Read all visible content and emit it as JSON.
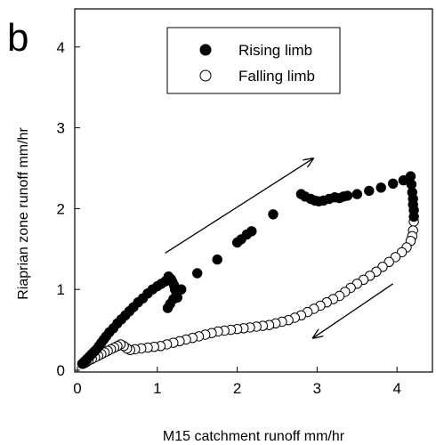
{
  "chart_data": {
    "type": "scatter",
    "panel_label": "b",
    "xlabel": "M15 catchment runoff mm/hr",
    "ylabel": "Riaprian zone runoff mm/hr",
    "xlim": [
      0,
      4.5
    ],
    "ylim": [
      0,
      4.5
    ],
    "xticks": [
      0,
      1,
      2,
      3,
      4
    ],
    "yticks": [
      0,
      1,
      2,
      3,
      4
    ],
    "grid": false,
    "legend_position": "top-center",
    "series": [
      {
        "name": "Rising limb",
        "marker": "filled-circle",
        "color": "#000000",
        "x": [
          0.06,
          0.09,
          0.12,
          0.15,
          0.18,
          0.21,
          0.24,
          0.27,
          0.3,
          0.33,
          0.36,
          0.4,
          0.45,
          0.5,
          0.55,
          0.6,
          0.65,
          0.7,
          0.76,
          0.82,
          0.88,
          0.94,
          1.0,
          1.05,
          1.1,
          1.14,
          1.17,
          1.19,
          1.21,
          1.22,
          1.24,
          1.2,
          1.16,
          1.13,
          1.25,
          1.3,
          1.5,
          1.75,
          2.0,
          2.05,
          2.12,
          2.18,
          2.45,
          2.8,
          2.85,
          2.92,
          2.97,
          3.02,
          3.08,
          3.15,
          3.22,
          3.28,
          3.33,
          3.38,
          3.5,
          3.65,
          3.8,
          3.95,
          4.08,
          4.17,
          4.18,
          4.19,
          4.2,
          4.2,
          4.21,
          4.21
        ],
        "y": [
          0.08,
          0.11,
          0.14,
          0.17,
          0.2,
          0.23,
          0.26,
          0.3,
          0.34,
          0.38,
          0.42,
          0.47,
          0.52,
          0.58,
          0.63,
          0.68,
          0.73,
          0.78,
          0.84,
          0.89,
          0.95,
          1.0,
          1.04,
          1.07,
          1.1,
          1.16,
          1.13,
          1.09,
          1.05,
          1.0,
          0.95,
          0.88,
          0.82,
          0.77,
          0.9,
          1.0,
          1.2,
          1.37,
          1.58,
          1.62,
          1.68,
          1.72,
          1.93,
          2.18,
          2.15,
          2.12,
          2.1,
          2.09,
          2.1,
          2.12,
          2.14,
          2.13,
          2.15,
          2.16,
          2.18,
          2.22,
          2.26,
          2.31,
          2.35,
          2.4,
          2.3,
          2.2,
          2.12,
          2.05,
          1.98,
          1.9
        ]
      },
      {
        "name": "Falling limb",
        "marker": "open-circle",
        "color": "#000000",
        "x": [
          4.21,
          4.2,
          4.19,
          4.17,
          4.12,
          4.06,
          3.98,
          3.9,
          3.82,
          3.74,
          3.66,
          3.58,
          3.5,
          3.42,
          3.35,
          3.28,
          3.2,
          3.12,
          3.04,
          2.96,
          2.88,
          2.8,
          2.72,
          2.64,
          2.56,
          2.48,
          2.4,
          2.32,
          2.24,
          2.16,
          2.08,
          2.0,
          1.92,
          1.84,
          1.76,
          1.68,
          1.6,
          1.52,
          1.44,
          1.36,
          1.28,
          1.2,
          1.12,
          1.04,
          0.96,
          0.88,
          0.8,
          0.72,
          0.66,
          0.62,
          0.58,
          0.54,
          0.5,
          0.46,
          0.42,
          0.38,
          0.34,
          0.3,
          0.26,
          0.22,
          0.18,
          0.14,
          0.11,
          0.09,
          0.07
        ],
        "y": [
          1.84,
          1.73,
          1.66,
          1.6,
          1.52,
          1.46,
          1.4,
          1.34,
          1.28,
          1.22,
          1.17,
          1.12,
          1.07,
          1.02,
          0.97,
          0.92,
          0.88,
          0.84,
          0.8,
          0.76,
          0.72,
          0.68,
          0.65,
          0.62,
          0.6,
          0.58,
          0.56,
          0.55,
          0.54,
          0.53,
          0.52,
          0.51,
          0.5,
          0.49,
          0.48,
          0.46,
          0.44,
          0.42,
          0.4,
          0.38,
          0.36,
          0.34,
          0.32,
          0.3,
          0.29,
          0.28,
          0.27,
          0.26,
          0.25,
          0.27,
          0.3,
          0.32,
          0.3,
          0.28,
          0.26,
          0.24,
          0.22,
          0.2,
          0.18,
          0.16,
          0.14,
          0.12,
          0.1,
          0.09,
          0.08
        ]
      }
    ],
    "annotations": [
      {
        "type": "arrow",
        "from": [
          1.1,
          1.45
        ],
        "to": [
          2.95,
          2.62
        ],
        "direction": "up-right"
      },
      {
        "type": "arrow",
        "from": [
          3.95,
          1.07
        ],
        "to": [
          2.95,
          0.4
        ],
        "direction": "down-left"
      }
    ]
  }
}
